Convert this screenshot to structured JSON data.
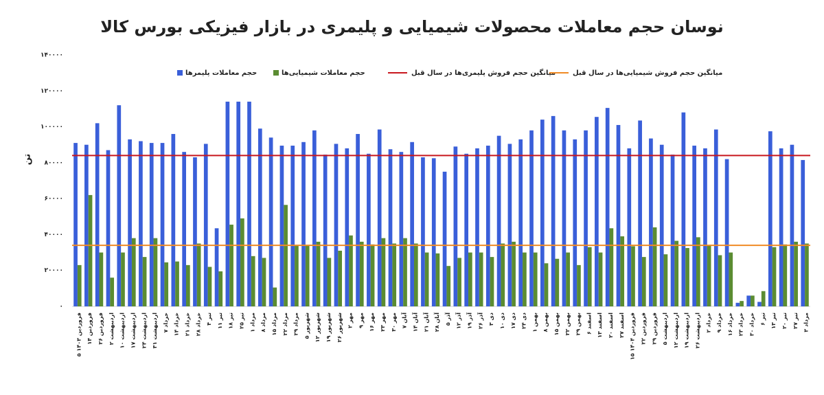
{
  "chart_data": {
    "type": "bar",
    "title": "نوسان حجم معاملات محصولات شیمیایی و پلیمری در بازار فیزیکی بورس کالا",
    "y_label": "تن",
    "categories": [
      "۵ فروردین ۱۴۰۳",
      "۱۴ فروردین",
      "۲۶ فروردین",
      "۲ اردیبهشت",
      "۱۰ اردیبهشت",
      "۱۷ اردیبهشت",
      "۲۴ اردیبهشت",
      "۳۱ اردیبهشت",
      "۷ خرداد",
      "۱۴ خرداد",
      "۲۱ خرداد",
      "۲۸ خرداد",
      "۴ تیر",
      "۱۱ تیر",
      "۱۸ تیر",
      "۲۵ تیر",
      "۱ مرداد",
      "۸ مرداد",
      "۱۵ مرداد",
      "۲۲ مرداد",
      "۲۹ مرداد",
      "۵ شهریور",
      "۱۲ شهریور",
      "۱۹ شهریور",
      "۲۶ شهریور",
      "۲ مهر",
      "۹ مهر",
      "۱۶ مهر",
      "۲۳ مهر",
      "۳۰ مهر",
      "۷ آبان",
      "۱۴ آبان",
      "۲۱ آبان",
      "۲۸ آبان",
      "۵ آذر",
      "۱۲ آذر",
      "۱۹ آذر",
      "۲۶ آذر",
      "۳ دی",
      "۱۰ دی",
      "۱۷ دی",
      "۲۴ دی",
      "۱ بهمن",
      "۸ بهمن",
      "۱۵ بهمن",
      "۲۲ بهمن",
      "۲۹ بهمن",
      "۶ اسفند",
      "۱۳ اسفند",
      "۲۰ اسفند",
      "۲۷ اسفند",
      "۱۵ فروردین ۱۴۰۴",
      "۲۲ فروردین",
      "۲۹ فروردین",
      "۵ اردیبهشت",
      "۱۲ اردیبهشت",
      "۱۹ اردیبهشت",
      "۲۶ اردیبهشت",
      "۲ خرداد",
      "۹ خرداد",
      "۱۶ خرداد",
      "۲۳ خرداد",
      "۳۰ خرداد",
      "۶ تیر",
      "۱۳ تیر",
      "۲۰ تیر",
      "۲۷ تیر",
      "۳ مرداد"
    ],
    "series": [
      {
        "name": "حجم معاملات پلیمرها",
        "color": "#3a5fd9",
        "values": [
          91000,
          90000,
          102000,
          87000,
          112000,
          93000,
          92000,
          91000,
          91000,
          96000,
          86000,
          83000,
          90500,
          43500,
          114000,
          114000,
          114000,
          99000,
          94000,
          89500,
          89500,
          91500,
          98000,
          84500,
          90500,
          88000,
          96000,
          85000,
          98500,
          87500,
          86000,
          91500,
          83000,
          82500,
          75000,
          89000,
          85000,
          88000,
          89500,
          95000,
          90500,
          93000,
          98000,
          104000,
          106000,
          98000,
          93000,
          98000,
          105500,
          110500,
          101000,
          88000,
          103500,
          93500,
          90000,
          84500,
          108000,
          89500,
          88000,
          98500,
          82000,
          2000,
          6000,
          2500,
          97500,
          88000,
          90000,
          81500
        ]
      },
      {
        "name": "حجم معاملات شیمیایی‌ها",
        "color": "#5b8c32",
        "values": [
          23000,
          62000,
          30000,
          16000,
          30000,
          38000,
          27500,
          38000,
          24500,
          25000,
          23000,
          35000,
          22000,
          19500,
          45500,
          49000,
          28000,
          27000,
          10500,
          56500,
          34000,
          34000,
          36000,
          27000,
          31000,
          39500,
          36000,
          34500,
          38000,
          35000,
          38000,
          35000,
          30000,
          29500,
          22500,
          27000,
          30000,
          30000,
          27500,
          35000,
          36000,
          30000,
          30000,
          24000,
          26500,
          30000,
          23000,
          33000,
          30000,
          43500,
          39000,
          33500,
          27500,
          44000,
          29000,
          36500,
          32500,
          38500,
          34000,
          28500,
          30000,
          3000,
          6000,
          8500,
          33000,
          34500,
          36000,
          35000
        ]
      }
    ],
    "reference_lines": [
      {
        "name": "میانگین حجم فروش پلیمری‌ها در سال قبل",
        "color": "#c8161d",
        "value": 84000
      },
      {
        "name": "میانگین حجم فروش شیمیایی‌ها در سال قبل",
        "color": "#f08a24",
        "value": 34000
      }
    ],
    "ylim": [
      0,
      140000
    ],
    "yticks": [
      {
        "value": 0,
        "label": "۰"
      },
      {
        "value": 20000,
        "label": "۲۰۰۰۰"
      },
      {
        "value": 40000,
        "label": "۴۰۰۰۰"
      },
      {
        "value": 60000,
        "label": "۶۰۰۰۰"
      },
      {
        "value": 80000,
        "label": "۸۰۰۰۰"
      },
      {
        "value": 100000,
        "label": "۱۰۰۰۰۰"
      },
      {
        "value": 120000,
        "label": "۱۲۰۰۰۰"
      },
      {
        "value": 140000,
        "label": "۱۴۰۰۰۰"
      }
    ],
    "grid": false
  }
}
